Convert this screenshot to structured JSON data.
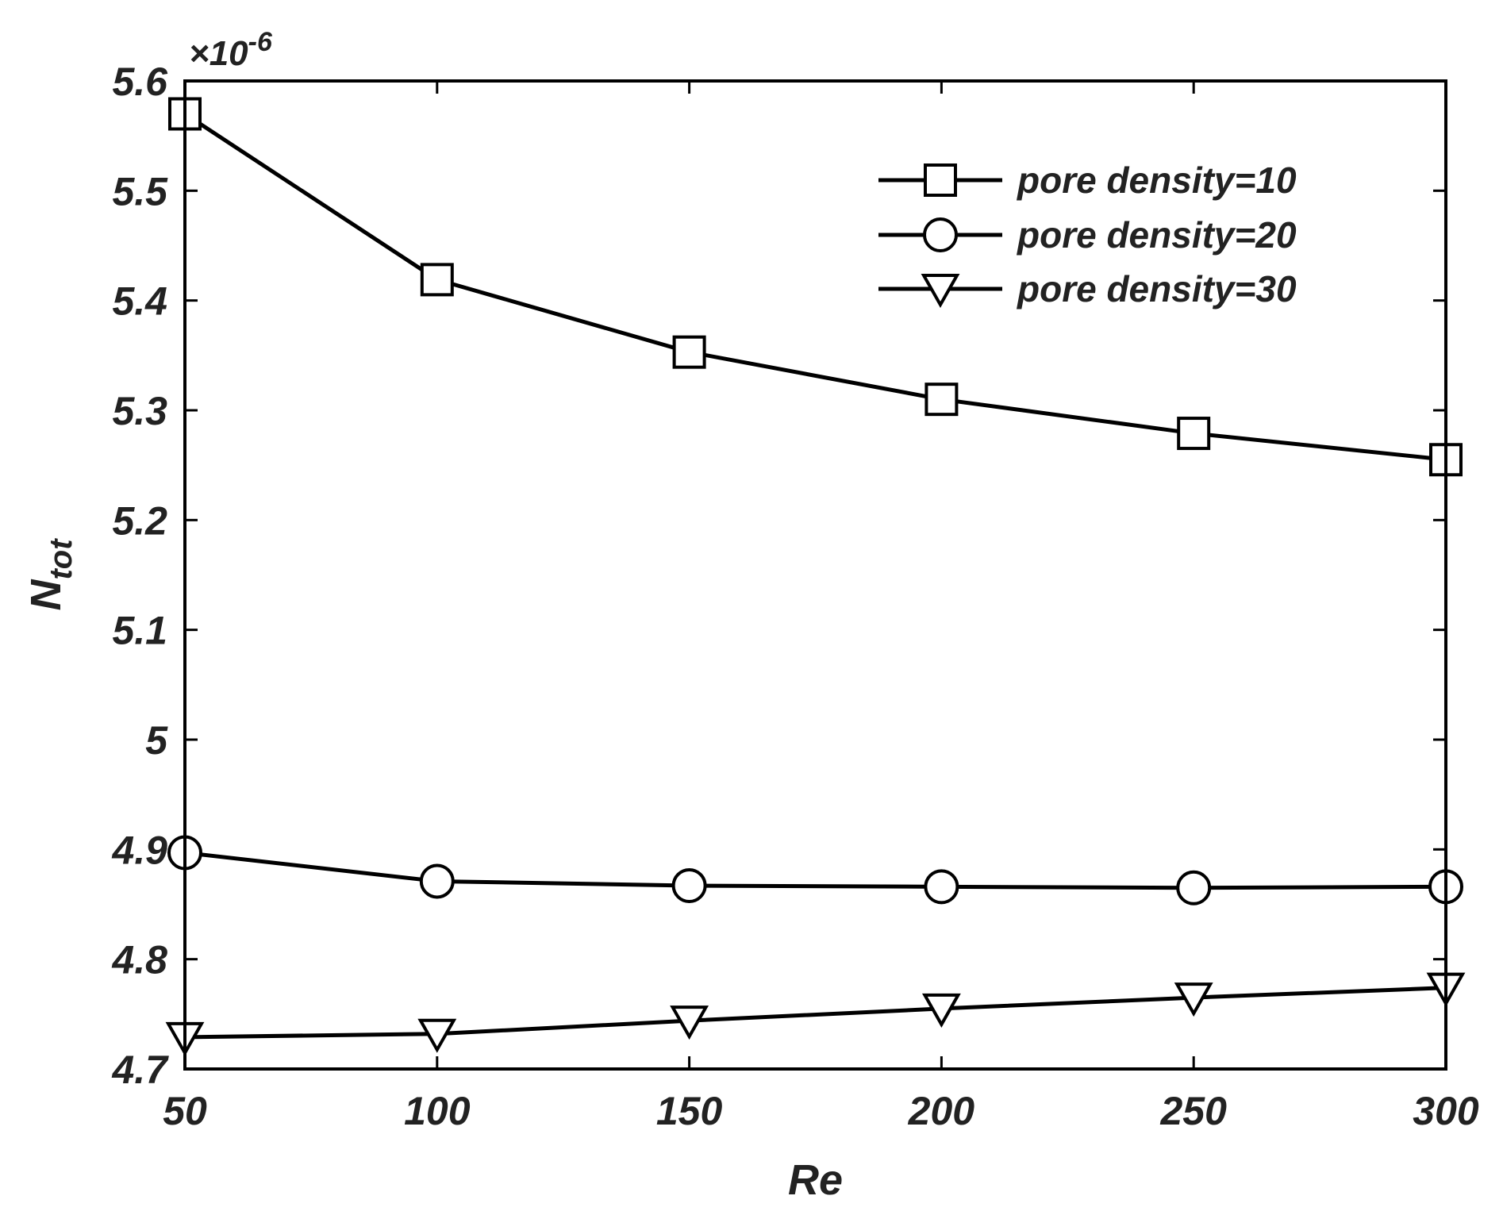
{
  "chart_data": {
    "type": "line",
    "xlabel": "Re",
    "ylabel_main": "N",
    "ylabel_sub": "tot",
    "y_exponent_prefix": "×10",
    "y_exponent_power": "-6",
    "xlim": [
      50,
      300
    ],
    "ylim": [
      4.7,
      5.6
    ],
    "x_ticks": [
      "50",
      "100",
      "150",
      "200",
      "250",
      "300"
    ],
    "y_ticks": [
      "4.7",
      "4.8",
      "4.9",
      "5",
      "5.1",
      "5.2",
      "5.3",
      "5.4",
      "5.5",
      "5.6"
    ],
    "x_tick_values": [
      50,
      100,
      150,
      200,
      250,
      300
    ],
    "y_tick_values": [
      4.7,
      4.8,
      4.9,
      5.0,
      5.1,
      5.2,
      5.3,
      5.4,
      5.5,
      5.6
    ],
    "grid": false,
    "legend_position": "top-right",
    "x": [
      50,
      100,
      150,
      200,
      250,
      300
    ],
    "series": [
      {
        "name": "pore density=10",
        "marker": "square",
        "values": [
          5.57,
          5.419,
          5.353,
          5.31,
          5.279,
          5.255
        ]
      },
      {
        "name": "pore density=20",
        "marker": "circle",
        "values": [
          4.897,
          4.871,
          4.867,
          4.866,
          4.865,
          4.866
        ]
      },
      {
        "name": "pore density=30",
        "marker": "triangle-down",
        "values": [
          4.729,
          4.732,
          4.744,
          4.755,
          4.765,
          4.774
        ]
      }
    ],
    "line_color": "#000000"
  }
}
